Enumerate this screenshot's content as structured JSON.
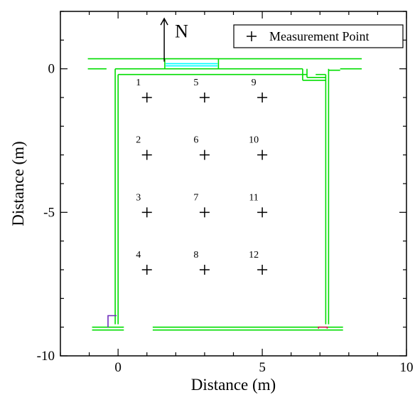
{
  "chart_data": {
    "type": "scatter",
    "xlabel": "Distance (m)",
    "ylabel": "Distance (m)",
    "xlim": [
      -2,
      10
    ],
    "ylim": [
      -10,
      2
    ],
    "x_ticks": [
      0,
      5,
      10
    ],
    "y_ticks": [
      0,
      -5,
      -10
    ],
    "x_tick_labels": [
      "0",
      "5",
      "10"
    ],
    "y_tick_labels": [
      "0",
      "-5",
      "-10"
    ],
    "grid": false,
    "legend": {
      "placement": "top-right",
      "entries": [
        "Measurement Point"
      ]
    },
    "north_label": "N",
    "series": [
      {
        "name": "Measurement Point",
        "marker": "plus",
        "points": [
          {
            "label": "1",
            "x": 1,
            "y": -1
          },
          {
            "label": "2",
            "x": 1,
            "y": -3
          },
          {
            "label": "3",
            "x": 1,
            "y": -5
          },
          {
            "label": "4",
            "x": 1,
            "y": -7
          },
          {
            "label": "5",
            "x": 3,
            "y": -1
          },
          {
            "label": "6",
            "x": 3,
            "y": -3
          },
          {
            "label": "7",
            "x": 3,
            "y": -5
          },
          {
            "label": "8",
            "x": 3,
            "y": -7
          },
          {
            "label": "9",
            "x": 5,
            "y": -1
          },
          {
            "label": "10",
            "x": 5,
            "y": -3
          },
          {
            "label": "11",
            "x": 5,
            "y": -5
          },
          {
            "label": "12",
            "x": 5,
            "y": -7
          }
        ]
      }
    ],
    "room_outline": [
      {
        "color": "#00dd00",
        "points": [
          [
            -1.05,
            0.35
          ],
          [
            8.45,
            0.35
          ]
        ]
      },
      {
        "color": "#00dd00",
        "points": [
          [
            -1.05,
            0.0
          ],
          [
            -0.4,
            0.0
          ]
        ]
      },
      {
        "color": "#00dd00",
        "points": [
          [
            -0.1,
            0.0
          ],
          [
            6.4,
            0.0
          ]
        ]
      },
      {
        "color": "#00dd00",
        "points": [
          [
            7.7,
            0.0
          ],
          [
            8.45,
            0.0
          ]
        ]
      },
      {
        "color": "#00dd00",
        "points": [
          [
            -0.1,
            0.0
          ],
          [
            -0.1,
            -8.9
          ]
        ]
      },
      {
        "color": "#00dd00",
        "points": [
          [
            0.0,
            -0.2
          ],
          [
            0.0,
            -8.9
          ]
        ]
      },
      {
        "color": "#00dd00",
        "points": [
          [
            7.2,
            -0.2
          ],
          [
            7.2,
            -8.9
          ]
        ]
      },
      {
        "color": "#00dd00",
        "points": [
          [
            7.3,
            0.0
          ],
          [
            7.3,
            -8.9
          ]
        ]
      },
      {
        "color": "#00dd00",
        "points": [
          [
            0.0,
            -0.2
          ],
          [
            6.55,
            -0.2
          ]
        ]
      },
      {
        "color": "#00dd00",
        "points": [
          [
            6.85,
            -0.2
          ],
          [
            7.2,
            -0.2
          ]
        ]
      },
      {
        "color": "#00dd00",
        "points": [
          [
            7.3,
            -0.05
          ],
          [
            7.7,
            -0.05
          ]
        ]
      },
      {
        "color": "#00dd00",
        "points": [
          [
            6.4,
            0.0
          ],
          [
            6.4,
            -0.4
          ]
        ]
      },
      {
        "color": "#00dd00",
        "points": [
          [
            6.55,
            0.0
          ],
          [
            6.55,
            -0.3
          ]
        ]
      },
      {
        "color": "#00dd00",
        "points": [
          [
            6.4,
            -0.4
          ],
          [
            7.2,
            -0.4
          ]
        ]
      },
      {
        "color": "#00dd00",
        "points": [
          [
            6.55,
            -0.3
          ],
          [
            7.2,
            -0.3
          ]
        ]
      },
      {
        "color": "#00dd00",
        "points": [
          [
            -0.9,
            -9.0
          ],
          [
            0.2,
            -9.0
          ]
        ]
      },
      {
        "color": "#00dd00",
        "points": [
          [
            -0.9,
            -9.1
          ],
          [
            0.2,
            -9.1
          ]
        ]
      },
      {
        "color": "#00dd00",
        "points": [
          [
            1.2,
            -9.0
          ],
          [
            7.8,
            -9.0
          ]
        ]
      },
      {
        "color": "#00dd00",
        "points": [
          [
            1.2,
            -9.1
          ],
          [
            7.8,
            -9.1
          ]
        ]
      },
      {
        "color": "#00ffff",
        "points": [
          [
            1.65,
            0.18
          ],
          [
            3.45,
            0.18
          ]
        ]
      },
      {
        "color": "#00ffff",
        "points": [
          [
            1.65,
            0.1
          ],
          [
            3.45,
            0.1
          ]
        ]
      },
      {
        "color": "#00dd00",
        "points": [
          [
            1.62,
            0.35
          ],
          [
            1.62,
            0.0
          ]
        ]
      },
      {
        "color": "#00dd00",
        "points": [
          [
            3.48,
            0.35
          ],
          [
            3.48,
            0.0
          ]
        ]
      },
      {
        "color": "#6f2dbd",
        "points": [
          [
            -0.35,
            -9.0
          ],
          [
            -0.35,
            -8.6
          ],
          [
            -0.05,
            -8.6
          ]
        ]
      },
      {
        "color": "#d11a4c",
        "points": [
          [
            6.95,
            -9.05
          ],
          [
            6.95,
            -9.0
          ],
          [
            7.25,
            -9.0
          ],
          [
            7.25,
            -9.05
          ]
        ]
      }
    ]
  }
}
